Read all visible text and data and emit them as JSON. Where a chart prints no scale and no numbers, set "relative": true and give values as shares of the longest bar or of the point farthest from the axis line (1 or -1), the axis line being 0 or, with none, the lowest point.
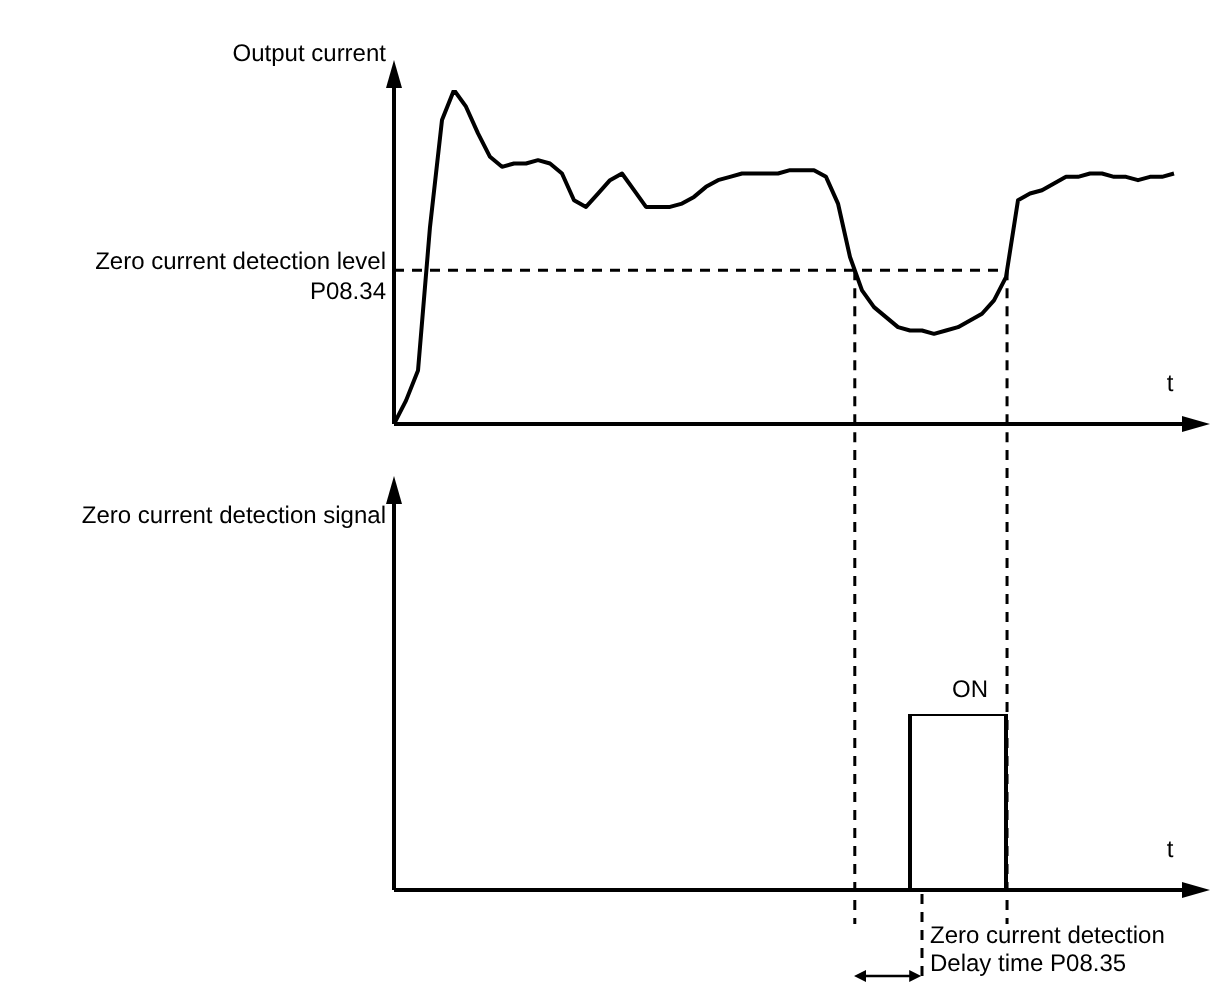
{
  "chart_data": [
    {
      "type": "line",
      "relative": true,
      "ylabel": "Output current",
      "xlabel": "t",
      "marker": "none",
      "line_style": "solid",
      "categories": [
        null,
        null,
        null,
        null,
        null,
        null,
        null,
        null,
        null,
        null,
        null,
        null,
        null,
        null,
        null,
        null,
        null,
        null,
        null,
        null,
        null,
        null,
        null,
        null,
        null,
        null,
        null,
        null,
        null,
        null,
        null,
        null,
        null,
        null,
        null,
        null,
        null,
        null,
        null,
        null,
        null,
        null,
        null,
        null,
        null,
        null,
        null,
        null,
        null,
        null,
        null,
        null,
        null,
        null,
        null,
        null,
        null,
        null,
        null,
        null,
        null,
        null,
        null,
        null,
        null,
        null
      ],
      "series": [
        {
          "color": "#000000",
          "values": [
            0,
            0.07,
            0.16,
            0.59,
            0.91,
            1,
            0.95,
            0.87,
            0.8,
            0.77,
            0.78,
            0.78,
            0.79,
            0.78,
            0.75,
            0.67,
            0.65,
            0.69,
            0.73,
            0.75,
            0.7,
            0.65,
            0.65,
            0.65,
            0.66,
            0.68,
            0.71,
            0.73,
            0.74,
            0.75,
            0.75,
            0.75,
            0.75,
            0.76,
            0.76,
            0.76,
            0.74,
            0.66,
            0.5,
            0.4,
            0.35,
            0.32,
            0.29,
            0.28,
            0.28,
            0.27,
            0.28,
            0.29,
            0.31,
            0.33,
            0.37,
            0.44,
            0.67,
            0.69,
            0.7,
            0.72,
            0.74,
            0.74,
            0.75,
            0.75,
            0.74,
            0.74,
            0.73,
            0.74,
            0.74,
            0.75
          ]
        }
      ],
      "ref_lines": [
        {
          "axis": "y",
          "value": 0.46,
          "label": "Zero current detection level P08.34",
          "line_style": "dashed",
          "color": "#000000"
        }
      ]
    },
    {
      "type": "step",
      "relative": true,
      "ylabel": "Zero current detection signal",
      "xlabel": "t",
      "marker": "none",
      "line_style": "solid",
      "categories": [
        null,
        null,
        null,
        null,
        null,
        null,
        null,
        null,
        null,
        null,
        null,
        null,
        null,
        null,
        null,
        null,
        null,
        null,
        null,
        null,
        null,
        null,
        null,
        null,
        null,
        null,
        null,
        null,
        null,
        null,
        null,
        null,
        null,
        null,
        null,
        null,
        null,
        null,
        null,
        null,
        null,
        null,
        null,
        null,
        null,
        null,
        null,
        null,
        null,
        null,
        null,
        null,
        null,
        null,
        null,
        null,
        null,
        null,
        null,
        null,
        null,
        null,
        null,
        null,
        null,
        null
      ],
      "series": [
        {
          "color": "#000000",
          "values": [
            0,
            0,
            0,
            0,
            0,
            0,
            0,
            0,
            0,
            0,
            0,
            0,
            0,
            0,
            0,
            0,
            0,
            0,
            0,
            0,
            0,
            0,
            0,
            0,
            0,
            0,
            0,
            0,
            0,
            0,
            0,
            0,
            0,
            0,
            0,
            0,
            0,
            0,
            0,
            0,
            0,
            0,
            0,
            0,
            1,
            1,
            1,
            1,
            1,
            1,
            1,
            1,
            0,
            0,
            0,
            0,
            0,
            0,
            0,
            0,
            0,
            0,
            0,
            0,
            0,
            0
          ]
        }
      ],
      "annotations": [
        {
          "text": "ON",
          "y": 1
        },
        "Zero current detection Delay time P08.35"
      ]
    }
  ]
}
